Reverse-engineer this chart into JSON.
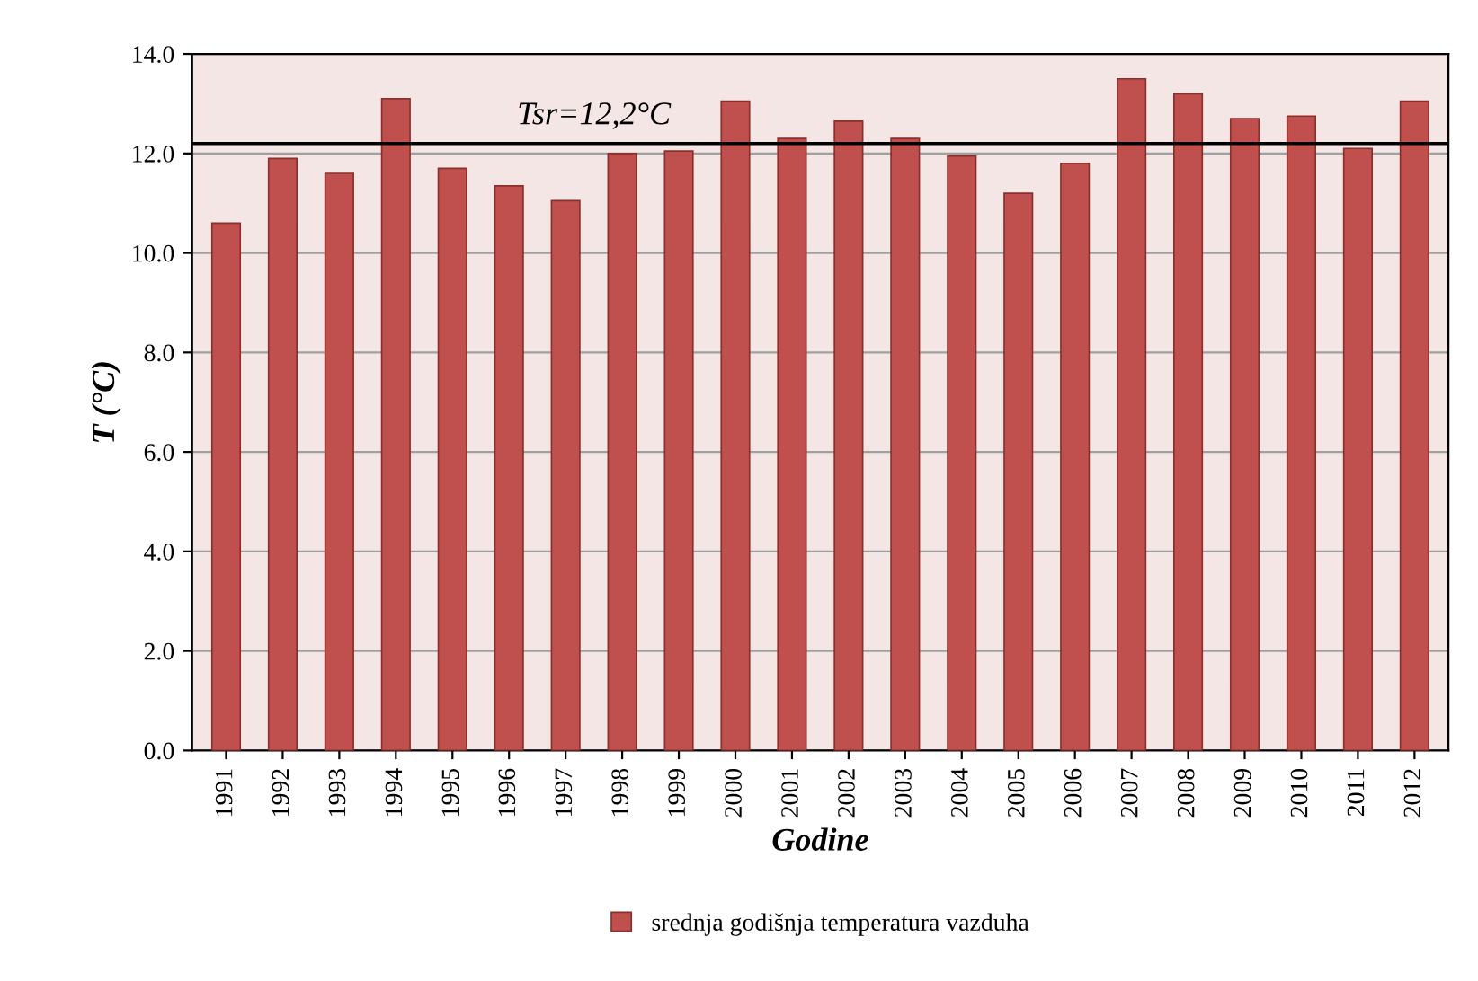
{
  "chart_data": {
    "type": "bar",
    "xlabel": "Godine",
    "ylabel": "T (°C)",
    "categories": [
      "1991",
      "1992",
      "1993",
      "1994",
      "1995",
      "1996",
      "1997",
      "1998",
      "1999",
      "2000",
      "2001",
      "2002",
      "2003",
      "2004",
      "2005",
      "2006",
      "2007",
      "2008",
      "2009",
      "2010",
      "2011",
      "2012"
    ],
    "series": [
      {
        "name": "srednja godišnja temperatura vazduha",
        "color": "#c0504d",
        "values": [
          10.6,
          11.9,
          11.6,
          13.1,
          11.7,
          11.35,
          11.05,
          12.0,
          12.05,
          13.05,
          12.3,
          12.65,
          12.3,
          11.95,
          11.2,
          11.8,
          13.5,
          13.2,
          12.7,
          12.75,
          12.1,
          13.05
        ]
      }
    ],
    "ylim": [
      0,
      14
    ],
    "yticks": [
      {
        "value": 0,
        "label": "0.0"
      },
      {
        "value": 2,
        "label": "2.0"
      },
      {
        "value": 4,
        "label": "4.0"
      },
      {
        "value": 6,
        "label": "6.0"
      },
      {
        "value": 8,
        "label": "8.0"
      },
      {
        "value": 10,
        "label": "10.0"
      },
      {
        "value": 12,
        "label": "12.0"
      },
      {
        "value": 14,
        "label": "14.0"
      }
    ],
    "ref_lines": [
      {
        "axis": "y",
        "value": 12.2,
        "label": "Tsr=12,2°C",
        "color": "#000000"
      }
    ],
    "grid": "y",
    "legend": "bottom"
  }
}
